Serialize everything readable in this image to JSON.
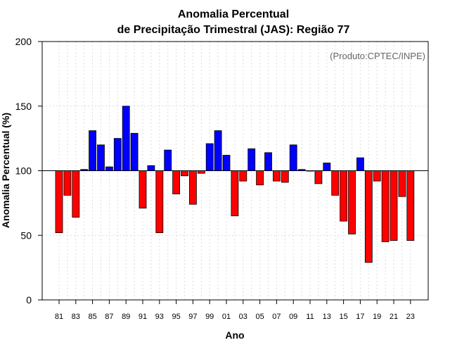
{
  "chart_data": {
    "type": "bar",
    "title_line1": "Anomalia Percentual",
    "title_line2": "de Precipitação Trimestral (JAS): Região 77",
    "xlabel": "Ano",
    "ylabel": "Anomalia Percentual (%)",
    "credit": "(Produto:CPTEC/INPE)",
    "ylim": [
      0,
      200
    ],
    "yticks": [
      0,
      50,
      100,
      150,
      200
    ],
    "baseline": 100,
    "grid": true,
    "colors": {
      "above": "#0000ff",
      "below": "#ff0000",
      "edge": "#000000"
    },
    "categories": [
      "1981",
      "1982",
      "1983",
      "1984",
      "1985",
      "1986",
      "1987",
      "1988",
      "1989",
      "1990",
      "1991",
      "1992",
      "1993",
      "1994",
      "1995",
      "1996",
      "1997",
      "1998",
      "1999",
      "2000",
      "2001",
      "2002",
      "2003",
      "2004",
      "2005",
      "2006",
      "2007",
      "2008",
      "2009",
      "2010",
      "2011",
      "2012",
      "2013",
      "2014",
      "2015",
      "2016",
      "2017",
      "2018",
      "2019",
      "2020",
      "2021",
      "2022",
      "2023"
    ],
    "xtick_labels": [
      "81",
      "83",
      "85",
      "87",
      "89",
      "91",
      "93",
      "95",
      "97",
      "99",
      "01",
      "03",
      "05",
      "07",
      "09",
      "11",
      "13",
      "15",
      "17",
      "19",
      "21",
      "23"
    ],
    "values": [
      52,
      81,
      64,
      101,
      131,
      120,
      103,
      125,
      150,
      129,
      71,
      104,
      52,
      116,
      82,
      96,
      74,
      98,
      121,
      131,
      112,
      65,
      92,
      117,
      89,
      114,
      92,
      91,
      120,
      101,
      100,
      90,
      106,
      81,
      61,
      51,
      110,
      29,
      92,
      45,
      46,
      80,
      46
    ]
  }
}
